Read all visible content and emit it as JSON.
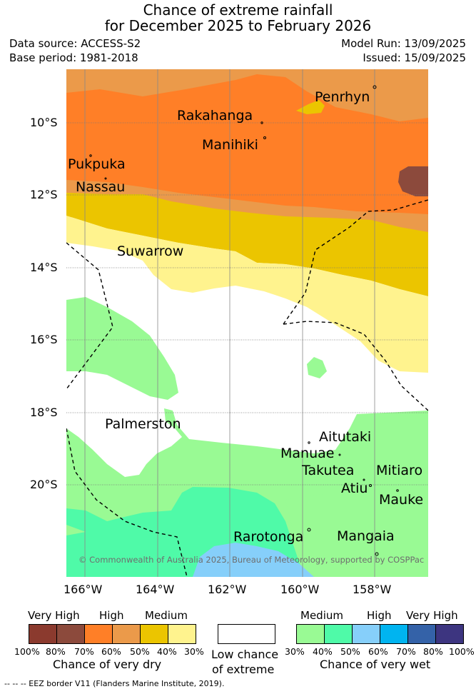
{
  "title": {
    "line1": "Chance of extreme rainfall",
    "line2": "for December 2025 to February 2026"
  },
  "meta": {
    "data_source": "Data source: ACCESS-S2",
    "base_period": "Base period: 1981-2018",
    "model_run": "Model Run: 13/09/2025",
    "issued": "Issued: 15/09/2025"
  },
  "map": {
    "lat_labels": [
      "10°S",
      "12°S",
      "14°S",
      "16°S",
      "18°S",
      "20°S"
    ],
    "lon_labels": [
      "166°W",
      "164°W",
      "162°W",
      "160°W",
      "158°W"
    ],
    "places": {
      "penrhyn": "Penrhyn",
      "rakahanga": "Rakahanga",
      "manihiki": "Manihiki",
      "pukapuka": "Pukpuka",
      "nassau": "Nassau",
      "suwarrow": "Suwarrow",
      "palmerston": "Palmerston",
      "aitutaki": "Aitutaki",
      "manuae": "Manuae",
      "takutea": "Takutea",
      "mitiaro": "Mitiaro",
      "atiu": "Atiu",
      "mauke": "Mauke",
      "rarotonga": "Rarotonga",
      "mangaia": "Mangaia"
    },
    "copyright": "© Commonwealth of Australia 2025, Bureau of Meteorology, supported by COSPPac"
  },
  "legend": {
    "dry": {
      "headers": [
        "Very High",
        "High",
        "Medium"
      ],
      "ticks": [
        "100%",
        "80%",
        "70%",
        "60%",
        "50%",
        "40%",
        "30%"
      ],
      "caption": "Chance of very dry",
      "colors": [
        "#8b3a2e",
        "#8c4a3c",
        "#ff7f27",
        "#eb9a4a",
        "#ebc500",
        "#fff38e"
      ]
    },
    "neutral": {
      "caption_line1": "Low chance",
      "caption_line2": "of extreme",
      "color": "#ffffff"
    },
    "wet": {
      "headers": [
        "Medium",
        "High",
        "Very High"
      ],
      "ticks": [
        "30%",
        "40%",
        "50%",
        "60%",
        "70%",
        "80%",
        "100%"
      ],
      "caption": "Chance of very wet",
      "colors": [
        "#99fa94",
        "#4ffaa8",
        "#86cffa",
        "#00b4f0",
        "#3462a8",
        "#3d3580"
      ]
    }
  },
  "footer": "--  --  -- EEZ border V11 (Flanders Marine Institute, 2019)."
}
